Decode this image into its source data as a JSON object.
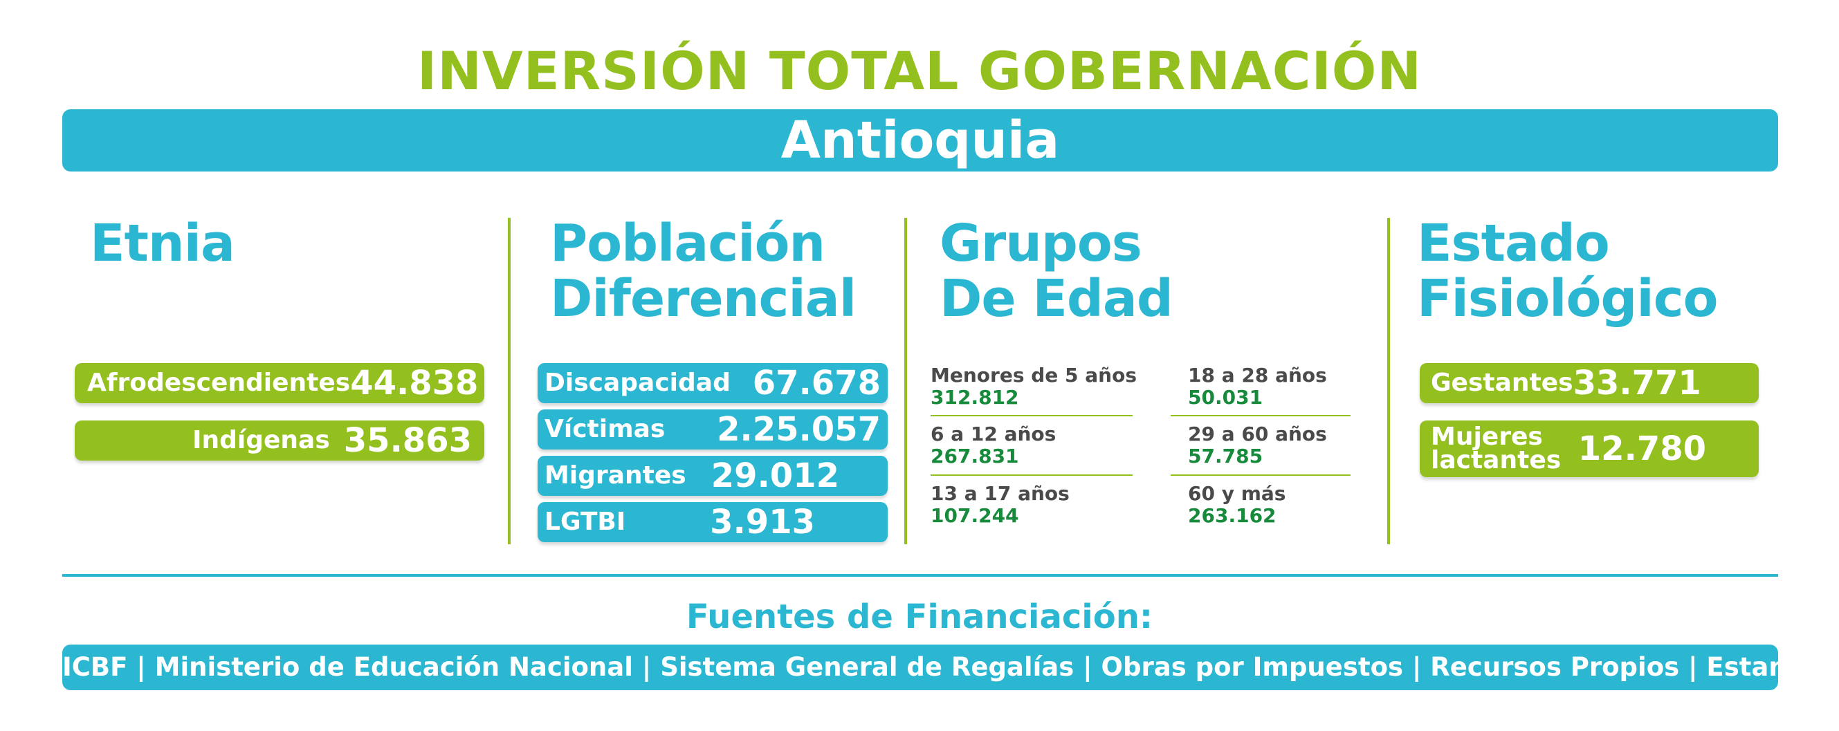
{
  "colors": {
    "green": "#93c01f",
    "blue": "#2bb7d1",
    "dark_green": "#178a3c",
    "gray": "#4a4a4a",
    "white": "#ffffff"
  },
  "header": {
    "title": "INVERSIÓN TOTAL GOBERNACIÓN",
    "region": "Antioquia"
  },
  "etnia": {
    "title": "Etnia",
    "items": [
      {
        "label": "Afrodescendientes",
        "value": "44.838"
      },
      {
        "label": "Indígenas",
        "value": "35.863"
      }
    ]
  },
  "poblacion": {
    "title_line1": "Población",
    "title_line2": "Diferencial",
    "items": [
      {
        "label": "Discapacidad",
        "value": "67.678"
      },
      {
        "label": "Víctimas",
        "value": "2.25.057"
      },
      {
        "label": "Migrantes",
        "value": "29.012"
      },
      {
        "label": "LGTBI",
        "value": "3.913"
      }
    ]
  },
  "edad": {
    "title_line1": "Grupos",
    "title_line2": "De Edad",
    "items": [
      {
        "label": "Menores de 5 años",
        "value": "312.812"
      },
      {
        "label": "18 a 28 años",
        "value": "50.031"
      },
      {
        "label": "6 a 12 años",
        "value": "267.831"
      },
      {
        "label": "29 a 60 años",
        "value": "57.785"
      },
      {
        "label": "13 a 17 años",
        "value": "107.244"
      },
      {
        "label": "60 y más",
        "value": "263.162"
      }
    ]
  },
  "fisiologico": {
    "title_line1": "Estado",
    "title_line2": "Fisiológico",
    "items": [
      {
        "label_line1": "Gestantes",
        "label_line2": "",
        "value": "33.771"
      },
      {
        "label_line1": "Mujeres",
        "label_line2": "lactantes",
        "value": "12.780"
      }
    ]
  },
  "funding": {
    "title": "Fuentes de Financiación:",
    "sources": "ICBF  | Ministerio de Educación Nacional | Sistema General de Regalías | Obras por Impuestos | Recursos Propios | Estampillas"
  }
}
